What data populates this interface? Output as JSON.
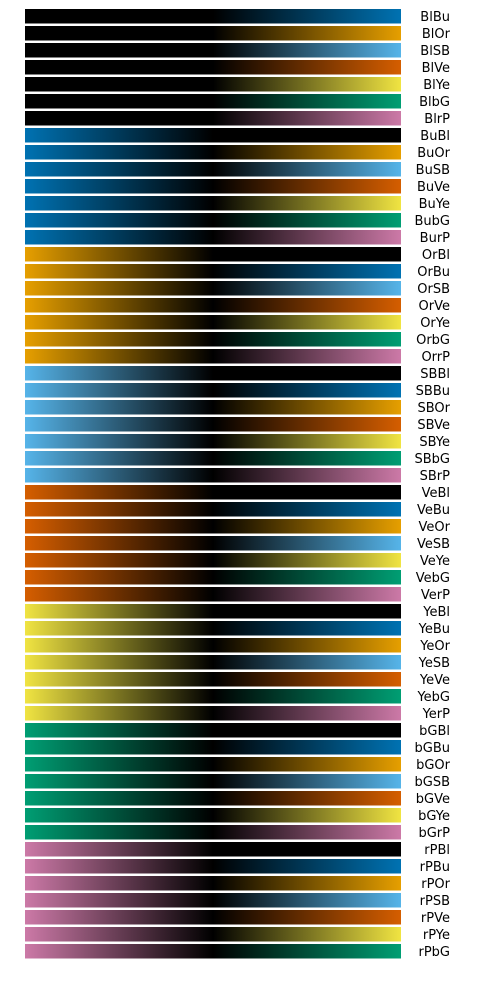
{
  "chart_data": {
    "type": "colormap-swatches",
    "title": "",
    "xlabel": "",
    "ylabel": "",
    "grid": false,
    "axes": false,
    "legend": false,
    "gradient_midpoint_color": "#000000",
    "colors": {
      "Bl": "#000000",
      "Bu": "#0072b2",
      "Or": "#e69f00",
      "SB": "#56b4e9",
      "Ve": "#d55e00",
      "Ye": "#f0e442",
      "bG": "#009e73",
      "rP": "#cc79a7"
    },
    "colormaps": [
      {
        "name": "BlBu",
        "start": "Bl",
        "end": "Bu"
      },
      {
        "name": "BlOr",
        "start": "Bl",
        "end": "Or"
      },
      {
        "name": "BlSB",
        "start": "Bl",
        "end": "SB"
      },
      {
        "name": "BlVe",
        "start": "Bl",
        "end": "Ve"
      },
      {
        "name": "BlYe",
        "start": "Bl",
        "end": "Ye"
      },
      {
        "name": "BlbG",
        "start": "Bl",
        "end": "bG"
      },
      {
        "name": "BlrP",
        "start": "Bl",
        "end": "rP"
      },
      {
        "name": "BuBl",
        "start": "Bu",
        "end": "Bl"
      },
      {
        "name": "BuOr",
        "start": "Bu",
        "end": "Or"
      },
      {
        "name": "BuSB",
        "start": "Bu",
        "end": "SB"
      },
      {
        "name": "BuVe",
        "start": "Bu",
        "end": "Ve"
      },
      {
        "name": "BuYe",
        "start": "Bu",
        "end": "Ye"
      },
      {
        "name": "BubG",
        "start": "Bu",
        "end": "bG"
      },
      {
        "name": "BurP",
        "start": "Bu",
        "end": "rP"
      },
      {
        "name": "OrBl",
        "start": "Or",
        "end": "Bl"
      },
      {
        "name": "OrBu",
        "start": "Or",
        "end": "Bu"
      },
      {
        "name": "OrSB",
        "start": "Or",
        "end": "SB"
      },
      {
        "name": "OrVe",
        "start": "Or",
        "end": "Ve"
      },
      {
        "name": "OrYe",
        "start": "Or",
        "end": "Ye"
      },
      {
        "name": "OrbG",
        "start": "Or",
        "end": "bG"
      },
      {
        "name": "OrrP",
        "start": "Or",
        "end": "rP"
      },
      {
        "name": "SBBl",
        "start": "SB",
        "end": "Bl"
      },
      {
        "name": "SBBu",
        "start": "SB",
        "end": "Bu"
      },
      {
        "name": "SBOr",
        "start": "SB",
        "end": "Or"
      },
      {
        "name": "SBVe",
        "start": "SB",
        "end": "Ve"
      },
      {
        "name": "SBYe",
        "start": "SB",
        "end": "Ye"
      },
      {
        "name": "SBbG",
        "start": "SB",
        "end": "bG"
      },
      {
        "name": "SBrP",
        "start": "SB",
        "end": "rP"
      },
      {
        "name": "VeBl",
        "start": "Ve",
        "end": "Bl"
      },
      {
        "name": "VeBu",
        "start": "Ve",
        "end": "Bu"
      },
      {
        "name": "VeOr",
        "start": "Ve",
        "end": "Or"
      },
      {
        "name": "VeSB",
        "start": "Ve",
        "end": "SB"
      },
      {
        "name": "VeYe",
        "start": "Ve",
        "end": "Ye"
      },
      {
        "name": "VebG",
        "start": "Ve",
        "end": "bG"
      },
      {
        "name": "VerP",
        "start": "Ve",
        "end": "rP"
      },
      {
        "name": "YeBl",
        "start": "Ye",
        "end": "Bl"
      },
      {
        "name": "YeBu",
        "start": "Ye",
        "end": "Bu"
      },
      {
        "name": "YeOr",
        "start": "Ye",
        "end": "Or"
      },
      {
        "name": "YeSB",
        "start": "Ye",
        "end": "SB"
      },
      {
        "name": "YeVe",
        "start": "Ye",
        "end": "Ve"
      },
      {
        "name": "YebG",
        "start": "Ye",
        "end": "bG"
      },
      {
        "name": "YerP",
        "start": "Ye",
        "end": "rP"
      },
      {
        "name": "bGBl",
        "start": "bG",
        "end": "Bl"
      },
      {
        "name": "bGBu",
        "start": "bG",
        "end": "Bu"
      },
      {
        "name": "bGOr",
        "start": "bG",
        "end": "Or"
      },
      {
        "name": "bGSB",
        "start": "bG",
        "end": "SB"
      },
      {
        "name": "bGVe",
        "start": "bG",
        "end": "Ve"
      },
      {
        "name": "bGYe",
        "start": "bG",
        "end": "Ye"
      },
      {
        "name": "bGrP",
        "start": "bG",
        "end": "rP"
      },
      {
        "name": "rPBl",
        "start": "rP",
        "end": "Bl"
      },
      {
        "name": "rPBu",
        "start": "rP",
        "end": "Bu"
      },
      {
        "name": "rPOr",
        "start": "rP",
        "end": "Or"
      },
      {
        "name": "rPSB",
        "start": "rP",
        "end": "SB"
      },
      {
        "name": "rPVe",
        "start": "rP",
        "end": "Ve"
      },
      {
        "name": "rPYe",
        "start": "rP",
        "end": "Ye"
      },
      {
        "name": "rPbG",
        "start": "rP",
        "end": "bG"
      }
    ]
  }
}
